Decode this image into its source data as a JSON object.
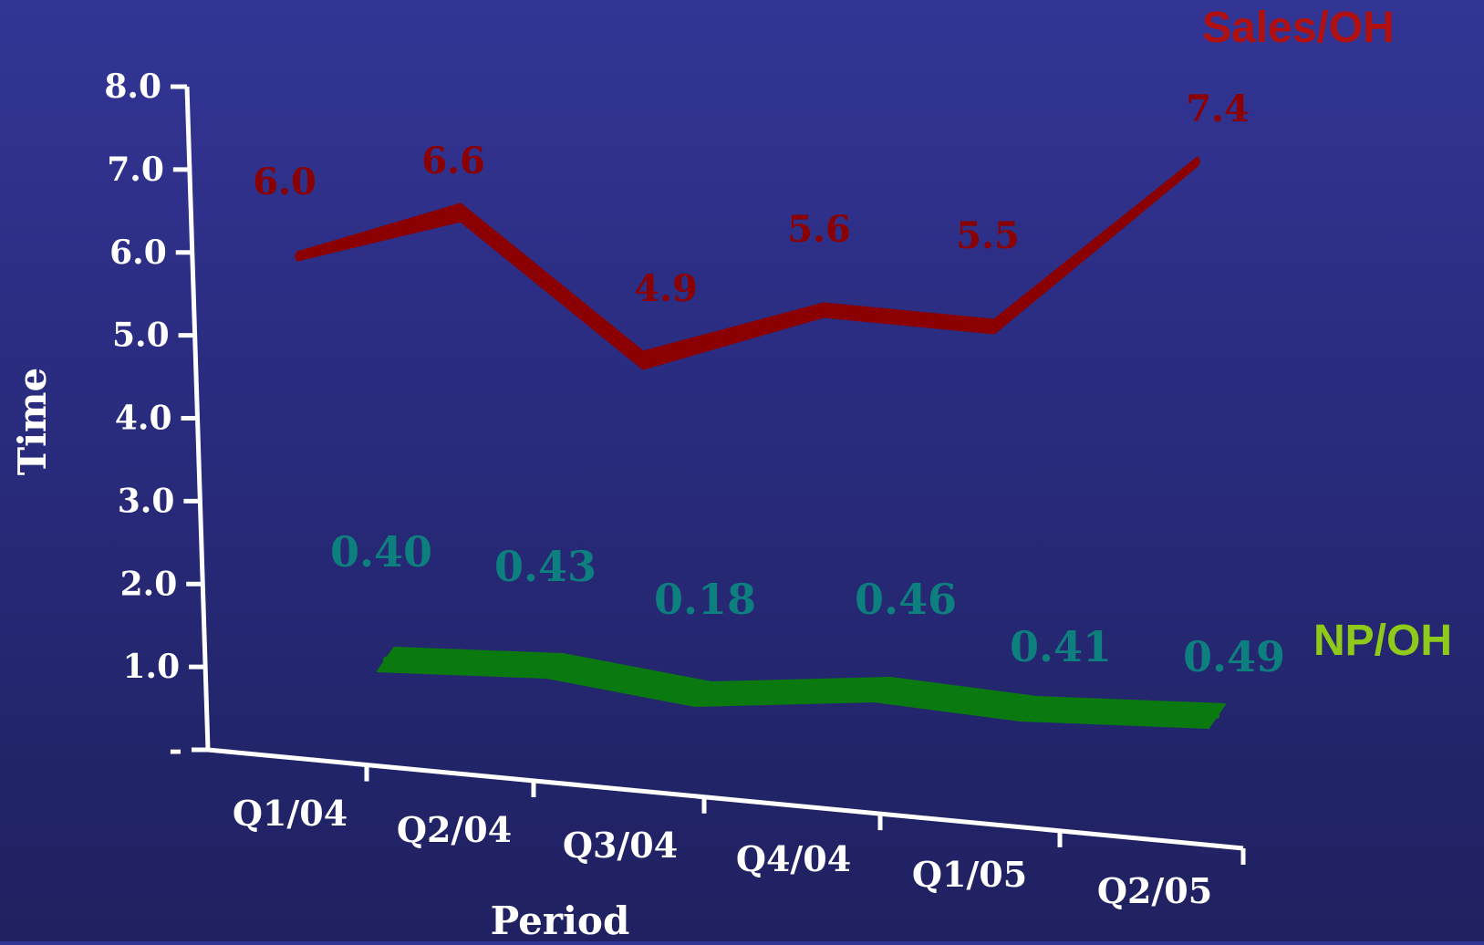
{
  "chart_data": {
    "type": "line",
    "categories": [
      "Q1/04",
      "Q2/04",
      "Q3/04",
      "Q4/04",
      "Q1/05",
      "Q2/05"
    ],
    "series": [
      {
        "name": "Sales/OH",
        "values": [
          6.0,
          6.6,
          4.9,
          5.6,
          5.5,
          7.4
        ],
        "labels": [
          "6.0",
          "6.6",
          "4.9",
          "5.6",
          "5.5",
          "7.4"
        ],
        "color": "#8b0000",
        "legend_color": "#b01010"
      },
      {
        "name": "NP/OH",
        "values": [
          0.4,
          0.43,
          0.18,
          0.46,
          0.41,
          0.49
        ],
        "labels": [
          "0.40",
          "0.43",
          "0.18",
          "0.46",
          "0.41",
          "0.49"
        ],
        "color": "#0a7a10",
        "label_color": "#0d7f7f",
        "legend_color": "#8fc91a"
      }
    ],
    "xlabel": "Period",
    "ylabel": "Time",
    "yticks": [
      "8.0",
      "7.0",
      "6.0",
      "5.0",
      "4.0",
      "3.0",
      "2.0",
      "1.0",
      "-"
    ],
    "ylim": [
      0,
      8
    ],
    "grid": false,
    "legend": "right"
  }
}
